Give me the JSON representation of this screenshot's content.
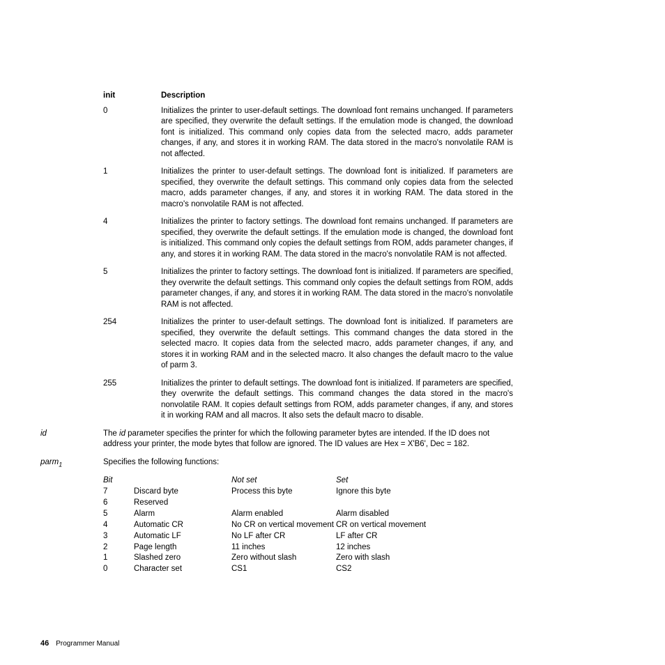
{
  "headers": {
    "init": "init",
    "desc": "Description"
  },
  "init_rows": [
    {
      "val": "0",
      "desc": "Initializes the printer to user-default settings. The download font remains unchanged. If parameters are specified, they overwrite the default settings. If the emulation mode is changed, the download font is initialized. This command only copies data from the selected macro, adds parameter changes, if any, and stores it in working RAM. The data stored in the macro's nonvolatile RAM is not affected."
    },
    {
      "val": "1",
      "desc": "Initializes the printer to user-default settings. The download font is initialized. If parameters are specified, they overwrite the default settings. This command only copies data from the selected macro, adds parameter changes, if any, and stores it in working RAM. The data stored in the macro's nonvolatile RAM is not affected."
    },
    {
      "val": "4",
      "desc": "Initializes the printer to factory settings. The download font remains unchanged. If parameters are specified, they overwrite the default settings. If the emulation mode is changed, the download font is initialized. This command only copies the default settings from ROM, adds parameter changes, if any, and stores it in working RAM. The data stored in the macro's nonvolatile RAM is not affected."
    },
    {
      "val": "5",
      "desc": "Initializes the printer to factory settings. The download font is initialized. If parameters are specified, they overwrite the default settings. This command only copies the default settings from ROM, adds parameter changes, if any, and stores it in working RAM. The data stored in the macro's nonvolatile RAM is not affected."
    },
    {
      "val": "254",
      "desc": "Initializes the printer to user-default settings. The download font is initialized. If parameters are specified, they overwrite the default settings. This command changes the data stored in the selected macro. It copies data from the selected macro, adds parameter changes, if any, and stores it in working RAM and in the selected macro. It also changes the default macro to the value of parm 3."
    },
    {
      "val": "255",
      "desc": "Initializes the printer to default settings. The download font is initialized. If parameters are specified, they overwrite the default settings. This command changes the data stored in the macro's nonvolatile RAM. It copies default settings from ROM, adds parameter changes, if any, and stores it in working RAM and all macros. It also sets the default macro to disable."
    }
  ],
  "id": {
    "label": "id",
    "pre": "The ",
    "word": "id",
    "post": " parameter specifies the printer for which the following parameter bytes are intended. If the ID does not address your printer, the mode bytes that follow are ignored. The ID values are Hex = X'B6', Dec = 182."
  },
  "parm1": {
    "label": "parm",
    "sub": "1",
    "text": "Specifies the following functions:"
  },
  "bit_header": {
    "c1": "Bit",
    "c2": "",
    "c3": "Not set",
    "c4": "Set"
  },
  "bit_rows": [
    {
      "c1": "7",
      "c2": "Discard byte",
      "c3": "Process this byte",
      "c4": "Ignore this byte"
    },
    {
      "c1": "6",
      "c2": "Reserved",
      "c3": "",
      "c4": ""
    },
    {
      "c1": "5",
      "c2": "Alarm",
      "c3": "Alarm enabled",
      "c4": "Alarm disabled"
    },
    {
      "c1": "4",
      "c2": "Automatic CR",
      "c3": "No CR on vertical movement",
      "c4": "CR on vertical movement"
    },
    {
      "c1": "3",
      "c2": "Automatic LF",
      "c3": "No LF after CR",
      "c4": "LF after CR"
    },
    {
      "c1": "2",
      "c2": "Page length",
      "c3": "11 inches",
      "c4": "12 inches"
    },
    {
      "c1": "1",
      "c2": "Slashed zero",
      "c3": "Zero without slash",
      "c4": "Zero with slash"
    },
    {
      "c1": "0",
      "c2": "Character set",
      "c3": "CS1",
      "c4": "CS2"
    }
  ],
  "footer": {
    "page": "46",
    "title": "Programmer Manual"
  }
}
